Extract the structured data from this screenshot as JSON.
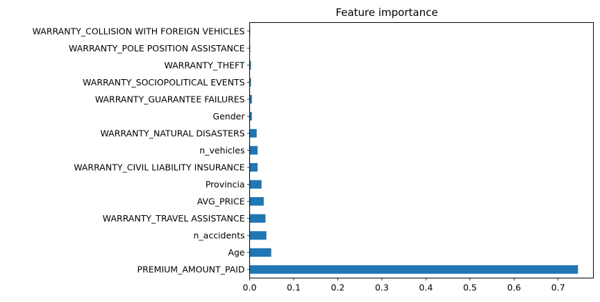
{
  "chart_data": {
    "type": "bar",
    "orientation": "horizontal",
    "title": "Feature importance",
    "xlabel": "",
    "ylabel": "",
    "xlim": [
      0,
      0.78
    ],
    "xticks": [
      0.0,
      0.1,
      0.2,
      0.3,
      0.4,
      0.5,
      0.6,
      0.7
    ],
    "xtick_labels": [
      "0.0",
      "0.1",
      "0.2",
      "0.3",
      "0.4",
      "0.5",
      "0.6",
      "0.7"
    ],
    "grid": false,
    "bar_color": "#1f77b4",
    "categories": [
      "PREMIUM_AMOUNT_PAID",
      "Age",
      "n_accidents",
      "WARRANTY_TRAVEL ASSISTANCE",
      "AVG_PRICE",
      "Provincia",
      "WARRANTY_CIVIL LIABILITY INSURANCE",
      "n_vehicles",
      "WARRANTY_NATURAL DISASTERS",
      "Gender",
      "WARRANTY_GUARANTEE FAILURES",
      "WARRANTY_SOCIOPOLITICAL EVENTS",
      "WARRANTY_THEFT",
      "WARRANTY_POLE POSITION ASSISTANCE",
      "WARRANTY_COLLISION WITH FOREIGN VEHICLES"
    ],
    "values": [
      0.745,
      0.049,
      0.038,
      0.036,
      0.032,
      0.027,
      0.018,
      0.018,
      0.016,
      0.005,
      0.005,
      0.003,
      0.003,
      0.001,
      0.0005
    ]
  }
}
